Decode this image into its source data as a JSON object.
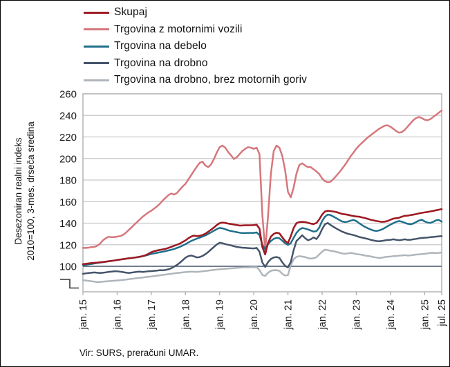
{
  "legend": {
    "items": [
      {
        "label": "Skupaj",
        "color": "#9E1B24"
      },
      {
        "label": "Trgovina z motornimi vozili",
        "color": "#D5777C"
      },
      {
        "label": "Trgovina na debelo",
        "color": "#1F6F8B"
      },
      {
        "label": "Trgovina na drobno",
        "color": "#44546A"
      },
      {
        "label": "Trgovina na drobno, brez motornih goriv",
        "color": "#AFB5BA"
      }
    ]
  },
  "y_axis": {
    "label_line1": "Desezoniran realni indeks",
    "label_line2": "2010=100, 3-mes. drseča sredina",
    "ticks": [
      100,
      120,
      140,
      160,
      180,
      200,
      220,
      240,
      260
    ]
  },
  "x_axis": {
    "tick_labels": [
      "jan. 15",
      "jan. 16",
      "jan. 17",
      "jan. 18",
      "jan. 19",
      "jan. 20",
      "jan. 21",
      "jan. 22",
      "jan. 23",
      "jan. 24",
      "jan. 25",
      "jul. 25"
    ]
  },
  "source": {
    "text": "Vir: SURS, preračuni UMAR."
  },
  "chart_data": {
    "type": "line",
    "title": "",
    "x_unit": "monthly",
    "x_start": "jan 2015",
    "x_end": "jul 2025",
    "ylabel": "Desezoniran realni indeks 2010=100, 3-mes. drseča sredina",
    "ylim": [
      100,
      260
    ],
    "axis_break_below": 100,
    "grid": "horizontal",
    "legend_position": "top-left",
    "reference_line": {
      "value": 100,
      "color": "#44546A"
    },
    "colors": {
      "grid": "#C9C9C9",
      "border": "#A9A9A9",
      "tick_text": "#1a1a1a"
    },
    "series": [
      {
        "name": "Trgovina na drobno, brez motornih goriv",
        "color": "#AFB5BA",
        "width": 2.5,
        "values": [
          87,
          86.8,
          86.5,
          86.1,
          85.8,
          85.5,
          85.5,
          85.7,
          86,
          86.2,
          86.4,
          86.6,
          86.8,
          87,
          87.3,
          87.6,
          88,
          88.3,
          88.6,
          89,
          89.3,
          89.6,
          90,
          90.2,
          90.5,
          90.9,
          91.3,
          91.6,
          92,
          92.3,
          92.7,
          93,
          93.4,
          93.7,
          94,
          94.3,
          94.6,
          94.8,
          95,
          94.9,
          94.8,
          95,
          95.3,
          95.6,
          96,
          96.3,
          96.6,
          97,
          97.2,
          97.4,
          97.7,
          97.9,
          98.1,
          98.3,
          98.5,
          98.7,
          98.9,
          99,
          99,
          99.1,
          99.1,
          99.2,
          96.5,
          92,
          91,
          94,
          95.8,
          96.4,
          96.4,
          95.8,
          93,
          91.4,
          91.8,
          101,
          106.5,
          108.8,
          109.4,
          109,
          108.6,
          107.6,
          107.1,
          107.4,
          108.4,
          111,
          113.6,
          115.4,
          115,
          114.4,
          114,
          113.4,
          112.6,
          112,
          111.6,
          112,
          112.4,
          112,
          111.4,
          111,
          110.6,
          110,
          109.6,
          109.2,
          108.6,
          108.1,
          107.7,
          108,
          108.5,
          108.9,
          109,
          109.4,
          109.5,
          109.9,
          110,
          110.4,
          110,
          110.1,
          110.5,
          110.9,
          111,
          111.4,
          111.5,
          112,
          112.4,
          112.5,
          112.2,
          112.5,
          112.8
        ]
      },
      {
        "name": "Trgovina z motornimi vozili",
        "color": "#D5777C",
        "width": 2.5,
        "values": [
          117,
          117,
          117.3,
          117.8,
          118,
          119,
          121,
          124,
          126,
          127.4,
          127,
          127,
          127.5,
          128,
          129,
          131,
          133.5,
          136,
          138.5,
          141,
          143.5,
          146,
          148,
          150,
          151.5,
          153.5,
          155.5,
          158,
          161,
          163.5,
          166,
          167.5,
          166.5,
          168,
          171,
          174,
          176.5,
          180.5,
          184.5,
          188.5,
          192.5,
          196,
          197,
          193.5,
          192,
          194.5,
          199.5,
          205.5,
          210.5,
          212,
          210,
          206,
          203,
          199.5,
          201,
          204,
          207,
          209,
          210.5,
          210,
          209,
          210,
          204,
          148,
          115,
          146,
          186,
          207,
          212,
          210,
          202.5,
          189,
          169,
          164,
          173,
          186,
          194,
          195.5,
          193.5,
          192,
          192,
          190,
          188,
          185.5,
          181.5,
          179,
          178,
          178.5,
          181,
          184,
          187,
          190.5,
          194,
          198,
          202,
          205.5,
          209,
          212,
          214.5,
          217,
          219.5,
          221.5,
          223.5,
          225.5,
          227.5,
          229,
          230.5,
          230.8,
          229.5,
          227.5,
          225.5,
          224,
          224.5,
          226.5,
          229.5,
          232.5,
          235.5,
          237.5,
          238.5,
          237.5,
          236,
          235.5,
          236.5,
          238.5,
          240.5,
          242.5,
          244.5
        ]
      },
      {
        "name": "Trgovina na drobno",
        "color": "#44546A",
        "width": 2.5,
        "values": [
          93,
          93.4,
          93.8,
          94,
          94.3,
          94,
          93.7,
          94,
          94.4,
          94.8,
          95,
          95.3,
          95.4,
          95,
          94.6,
          94.2,
          93.8,
          94.1,
          94.5,
          94.9,
          95,
          94.7,
          95,
          95.4,
          95.5,
          95.8,
          96,
          96.4,
          96.2,
          96.6,
          97.2,
          98.2,
          99.6,
          101.2,
          103.2,
          105.6,
          108,
          109.4,
          110,
          109.2,
          108.2,
          108.6,
          109.6,
          111.2,
          113.2,
          115.6,
          118,
          120.2,
          121.8,
          121.4,
          120.6,
          120,
          119.4,
          118.6,
          118,
          117.6,
          117.2,
          117.1,
          116.9,
          116.7,
          116.6,
          117,
          113.5,
          103.5,
          99.4,
          103.8,
          106.8,
          108.2,
          108.6,
          107.8,
          103.8,
          100.4,
          99,
          104,
          115,
          123.5,
          126,
          128.8,
          126.2,
          124.2,
          125,
          126.8,
          125.2,
          128.8,
          134.5,
          139,
          140.2,
          138.2,
          136.6,
          135,
          133.6,
          132.2,
          131.2,
          130.2,
          129.6,
          129,
          128.2,
          127.2,
          126.6,
          126,
          125.4,
          124.6,
          124,
          123.4,
          123.2,
          123.5,
          124,
          124.4,
          124.6,
          125,
          124.6,
          124.2,
          124.5,
          125,
          124.6,
          124.6,
          125,
          125.4,
          125.9,
          126.3,
          126.5,
          126.6,
          127,
          127.2,
          127.5,
          127.8,
          128
        ]
      },
      {
        "name": "Trgovina na debelo",
        "color": "#1F6F8B",
        "width": 2.5,
        "values": [
          101,
          101.4,
          101.8,
          102.2,
          102.6,
          103,
          103.4,
          103.8,
          104.2,
          104.6,
          105,
          105.4,
          105.8,
          106.2,
          106.6,
          107,
          107.4,
          107.7,
          108,
          108.4,
          108.8,
          109.3,
          110,
          110.7,
          111.5,
          112,
          112.5,
          113,
          113.5,
          114,
          114.7,
          115.3,
          116,
          117,
          118,
          119.2,
          120.5,
          122,
          123.5,
          124.6,
          125.6,
          126.6,
          127.6,
          128.7,
          130,
          131.5,
          133,
          134.5,
          135.6,
          135.2,
          134.4,
          133.4,
          132.7,
          132.2,
          131.7,
          131.2,
          130.8,
          130.9,
          131,
          131,
          131,
          131.4,
          129,
          120,
          116,
          120.5,
          123.5,
          125.5,
          126.4,
          126,
          123.8,
          121.3,
          119.8,
          121.5,
          126.5,
          131,
          134,
          135.5,
          135,
          134.2,
          133.2,
          132.2,
          132.6,
          136,
          142,
          146,
          148,
          147.4,
          146,
          144.6,
          143,
          141.6,
          141,
          141.4,
          142.4,
          143,
          142,
          140,
          138.2,
          136.6,
          135.4,
          134.2,
          133.2,
          132.8,
          133.2,
          134.2,
          135.6,
          137.2,
          138.6,
          140,
          141.2,
          142,
          141.4,
          140.4,
          139.4,
          139,
          139.6,
          141,
          142.4,
          143.2,
          141.6,
          140.6,
          140.2,
          141.2,
          142.6,
          143,
          141.4
        ]
      },
      {
        "name": "Skupaj",
        "color": "#9E1B24",
        "width": 2.6,
        "values": [
          102,
          102.3,
          102.6,
          103,
          103.2,
          103.4,
          103.7,
          104,
          104.3,
          104.7,
          105,
          105.4,
          105.8,
          106.2,
          106.6,
          107,
          107.3,
          107.6,
          108,
          108.4,
          108.9,
          109.5,
          110.3,
          111.5,
          113,
          114,
          114.6,
          115.2,
          115.7,
          116.2,
          117,
          118,
          119,
          120,
          121,
          122.5,
          124,
          126,
          127.5,
          128.5,
          128,
          128.3,
          129,
          130.2,
          132,
          134,
          136,
          138.2,
          140,
          140.5,
          140.2,
          139.6,
          139.2,
          138.7,
          138.3,
          137.8,
          137.9,
          138,
          138,
          138.1,
          138.2,
          138.5,
          135,
          118,
          111,
          121.5,
          127.5,
          130,
          131.2,
          130.5,
          127,
          123.5,
          121.5,
          128,
          135.5,
          140,
          141,
          141.2,
          141,
          140.3,
          139.6,
          139.2,
          140.2,
          143.5,
          148,
          150.8,
          151.5,
          151.2,
          150.8,
          150.3,
          149.5,
          148.6,
          148.2,
          147.8,
          147.2,
          146.6,
          146.2,
          146,
          145.4,
          144.8,
          144,
          143.2,
          142.6,
          142,
          141.6,
          141.2,
          141.4,
          142,
          143.2,
          144.2,
          144.6,
          145,
          146,
          146.8,
          147,
          147.4,
          147.9,
          148.4,
          149,
          149.6,
          150,
          150.4,
          150.9,
          151.4,
          152,
          152.5,
          153
        ]
      }
    ]
  }
}
